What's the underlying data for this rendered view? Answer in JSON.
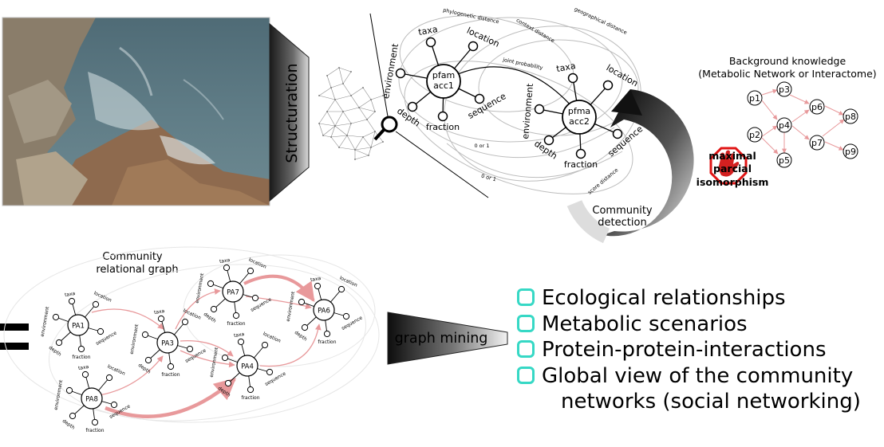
{
  "photo": {
    "alt": "rocky seashore photo"
  },
  "structuration": {
    "label": "Structuration"
  },
  "graph_labels": {
    "node1": [
      "pfam",
      "acc1"
    ],
    "node2": [
      "pfma",
      "acc2"
    ],
    "spokes1": [
      "environment",
      "taxa",
      "location",
      "sequence",
      "fraction",
      "depth"
    ],
    "spokes2": [
      "environment",
      "taxa",
      "location",
      "sequence",
      "fraction",
      "depth"
    ],
    "phylo": "phylogenetic distance",
    "geo": "geographical distance",
    "context": "context distance",
    "joint": "joint probability",
    "zero_or_one_a": "0 or 1",
    "zero_or_one_b": "0 or 1",
    "score": "score distance"
  },
  "community_detection": {
    "label_line1": "Community",
    "label_line2": "detection"
  },
  "stop_sign": {
    "line1": "maximal",
    "line2": "parcial",
    "line3": "isomorphism"
  },
  "background": {
    "title_line1": "Background knowledge",
    "title_line2": "(Metabolic Network or Interactome)",
    "nodes": [
      "p1",
      "p2",
      "p3",
      "p4",
      "p5",
      "p6",
      "p7",
      "p8",
      "p9"
    ]
  },
  "community_graph": {
    "title_line1": "Community",
    "title_line2": "relational graph",
    "nodes": [
      "PA1",
      "PA3",
      "PA7",
      "PA6",
      "PA4",
      "PA8"
    ],
    "spoke_labels": [
      "taxa",
      "location",
      "environment",
      "sequence",
      "fraction",
      "depth"
    ]
  },
  "graph_mining": {
    "label": "graph mining"
  },
  "equals": "=",
  "bullets": {
    "items": [
      "Ecological relationships",
      "Metabolic scenarios",
      "Protein-protein-interactions",
      "Global view of the community"
    ],
    "continuation": "networks (social networking)",
    "bullet_color": "#36d8c5"
  },
  "colors": {
    "arrow_pink": "#e8999b",
    "stop_red": "#e01414",
    "hand_red": "#d42020"
  }
}
